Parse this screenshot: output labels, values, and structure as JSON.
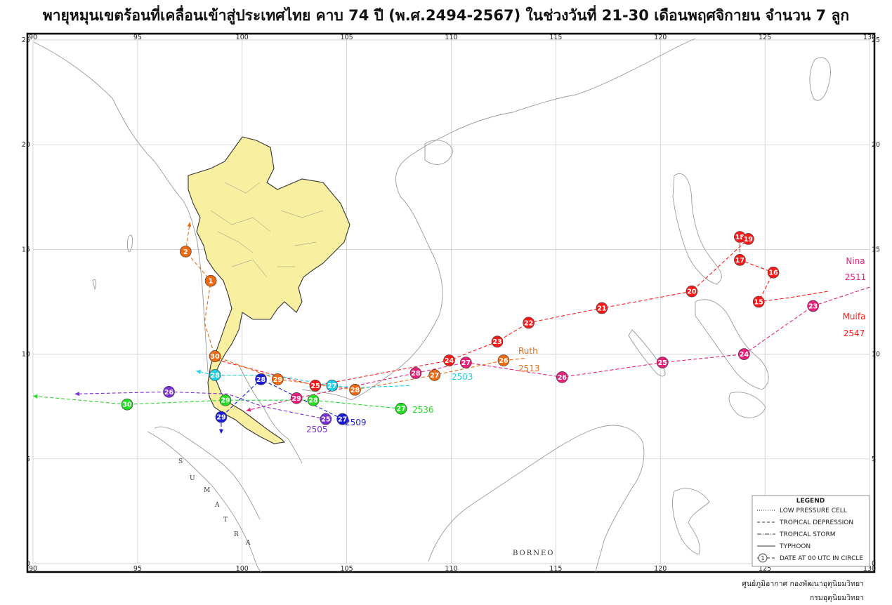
{
  "title": "พายุหมุนเขตร้อนที่เคลื่อนเข้าสู่ประเทศไทย คาบ 74 ปี (พ.ศ.2494-2567) ในช่วงวันที่ 21-30 เดือนพฤศจิกายน จำนวน 7 ลูก",
  "axes": {
    "lon_ticks": [
      "90",
      "95",
      "100",
      "105",
      "110",
      "115",
      "120",
      "125",
      "130"
    ],
    "lat_ticks": [
      "0",
      "5",
      "10",
      "15",
      "20",
      "25"
    ],
    "lon_range": [
      90,
      130
    ],
    "lat_range": [
      0,
      25
    ]
  },
  "place_labels": {
    "sumatra": [
      "S",
      "U",
      "M",
      "A",
      "T",
      "R",
      "A"
    ],
    "borneo": "BORNEO"
  },
  "legend": {
    "title": "LEGEND",
    "items": [
      {
        "style": "dotted",
        "label": "LOW PRESSURE CELL"
      },
      {
        "style": "dashed",
        "label": "TROPICAL DEPRESSION"
      },
      {
        "style": "dashdot",
        "label": "TROPICAL STORM"
      },
      {
        "style": "solid",
        "label": "TYPHOON"
      },
      {
        "style": "circle",
        "label": "DATE AT 00 UTC IN CIRCLE",
        "sample": "1"
      }
    ]
  },
  "credits": {
    "line1": "ศูนย์ภูมิอากาศ กองพัฒนาอุตุนิยมวิทยา",
    "line2": "กรมอุตุนิยมวิทยา"
  },
  "storms": [
    {
      "color": "#ff1a1a",
      "labels": [
        "Muifa",
        "2547"
      ],
      "points": [
        {
          "lon": 128.0,
          "lat": 13.0,
          "date": ""
        },
        {
          "lon": 126.2,
          "lat": 12.7,
          "date": ""
        },
        {
          "lon": 124.7,
          "lat": 12.5,
          "date": "15"
        },
        {
          "lon": 125.4,
          "lat": 13.9,
          "date": "16"
        },
        {
          "lon": 123.8,
          "lat": 14.5,
          "date": "17"
        },
        {
          "lon": 123.8,
          "lat": 15.6,
          "date": "18"
        },
        {
          "lon": 124.2,
          "lat": 15.5,
          "date": "19"
        },
        {
          "lon": 121.5,
          "lat": 13.0,
          "date": "20"
        },
        {
          "lon": 117.2,
          "lat": 12.2,
          "date": "21"
        },
        {
          "lon": 113.7,
          "lat": 11.5,
          "date": "22"
        },
        {
          "lon": 112.2,
          "lat": 10.6,
          "date": "23"
        },
        {
          "lon": 109.9,
          "lat": 9.7,
          "date": "24"
        },
        {
          "lon": 103.5,
          "lat": 8.5,
          "date": "25"
        },
        {
          "lon": 98.5,
          "lat": 9.8,
          "date": ""
        }
      ]
    },
    {
      "color": "#e6207a",
      "labels": [
        "Nina",
        "2511"
      ],
      "points": [
        {
          "lon": 130.0,
          "lat": 13.2,
          "date": ""
        },
        {
          "lon": 127.3,
          "lat": 12.3,
          "date": "23"
        },
        {
          "lon": 124.0,
          "lat": 10.0,
          "date": "24"
        },
        {
          "lon": 120.1,
          "lat": 9.6,
          "date": "25"
        },
        {
          "lon": 115.3,
          "lat": 8.9,
          "date": "26"
        },
        {
          "lon": 110.7,
          "lat": 9.6,
          "date": "27"
        },
        {
          "lon": 108.3,
          "lat": 9.1,
          "date": "28"
        },
        {
          "lon": 102.6,
          "lat": 7.9,
          "date": "29"
        },
        {
          "lon": 100.2,
          "lat": 7.3,
          "date": ""
        }
      ]
    },
    {
      "color": "#ee6a10",
      "labels": [
        "Ruth",
        "2513"
      ],
      "points": [
        {
          "lon": 113.5,
          "lat": 9.8,
          "date": ""
        },
        {
          "lon": 112.5,
          "lat": 9.7,
          "date": "26"
        },
        {
          "lon": 109.2,
          "lat": 9.0,
          "date": "27"
        },
        {
          "lon": 105.4,
          "lat": 8.3,
          "date": "28"
        },
        {
          "lon": 101.7,
          "lat": 8.8,
          "date": "29"
        },
        {
          "lon": 98.7,
          "lat": 9.9,
          "date": "30"
        },
        {
          "lon": 98.2,
          "lat": 11.5,
          "date": ""
        },
        {
          "lon": 98.5,
          "lat": 13.5,
          "date": "1"
        },
        {
          "lon": 97.3,
          "lat": 14.9,
          "date": "2"
        },
        {
          "lon": 97.5,
          "lat": 16.3,
          "date": ""
        }
      ]
    },
    {
      "color": "#22cfe8",
      "labels": [
        "2503"
      ],
      "points": [
        {
          "lon": 108.0,
          "lat": 8.5,
          "date": ""
        },
        {
          "lon": 105.5,
          "lat": 8.4,
          "date": ""
        },
        {
          "lon": 104.3,
          "lat": 8.5,
          "date": "27"
        },
        {
          "lon": 101.5,
          "lat": 9.0,
          "date": ""
        },
        {
          "lon": 98.7,
          "lat": 9.0,
          "date": "28"
        },
        {
          "lon": 97.8,
          "lat": 9.2,
          "date": ""
        }
      ]
    },
    {
      "color": "#22dd22",
      "labels": [
        "2536"
      ],
      "points": [
        {
          "lon": 107.6,
          "lat": 7.4,
          "date": "27"
        },
        {
          "lon": 103.4,
          "lat": 7.8,
          "date": "28"
        },
        {
          "lon": 99.2,
          "lat": 7.8,
          "date": "29"
        },
        {
          "lon": 94.5,
          "lat": 7.6,
          "date": "30"
        },
        {
          "lon": 90.0,
          "lat": 8.0,
          "date": ""
        }
      ]
    },
    {
      "color": "#7b2fd6",
      "labels": [
        "2505"
      ],
      "points": [
        {
          "lon": 104.0,
          "lat": 6.9,
          "date": "25"
        },
        {
          "lon": 101.0,
          "lat": 7.5,
          "date": ""
        },
        {
          "lon": 99.3,
          "lat": 8.1,
          "date": ""
        },
        {
          "lon": 96.5,
          "lat": 8.2,
          "date": "26"
        },
        {
          "lon": 92.0,
          "lat": 8.1,
          "date": ""
        }
      ]
    },
    {
      "color": "#1c1cd8",
      "labels": [
        "2509"
      ],
      "points": [
        {
          "lon": 104.8,
          "lat": 6.9,
          "date": "27"
        },
        {
          "lon": 100.9,
          "lat": 8.8,
          "date": "28"
        },
        {
          "lon": 99.0,
          "lat": 7.0,
          "date": "29"
        },
        {
          "lon": 99.0,
          "lat": 6.2,
          "date": ""
        }
      ]
    }
  ]
}
